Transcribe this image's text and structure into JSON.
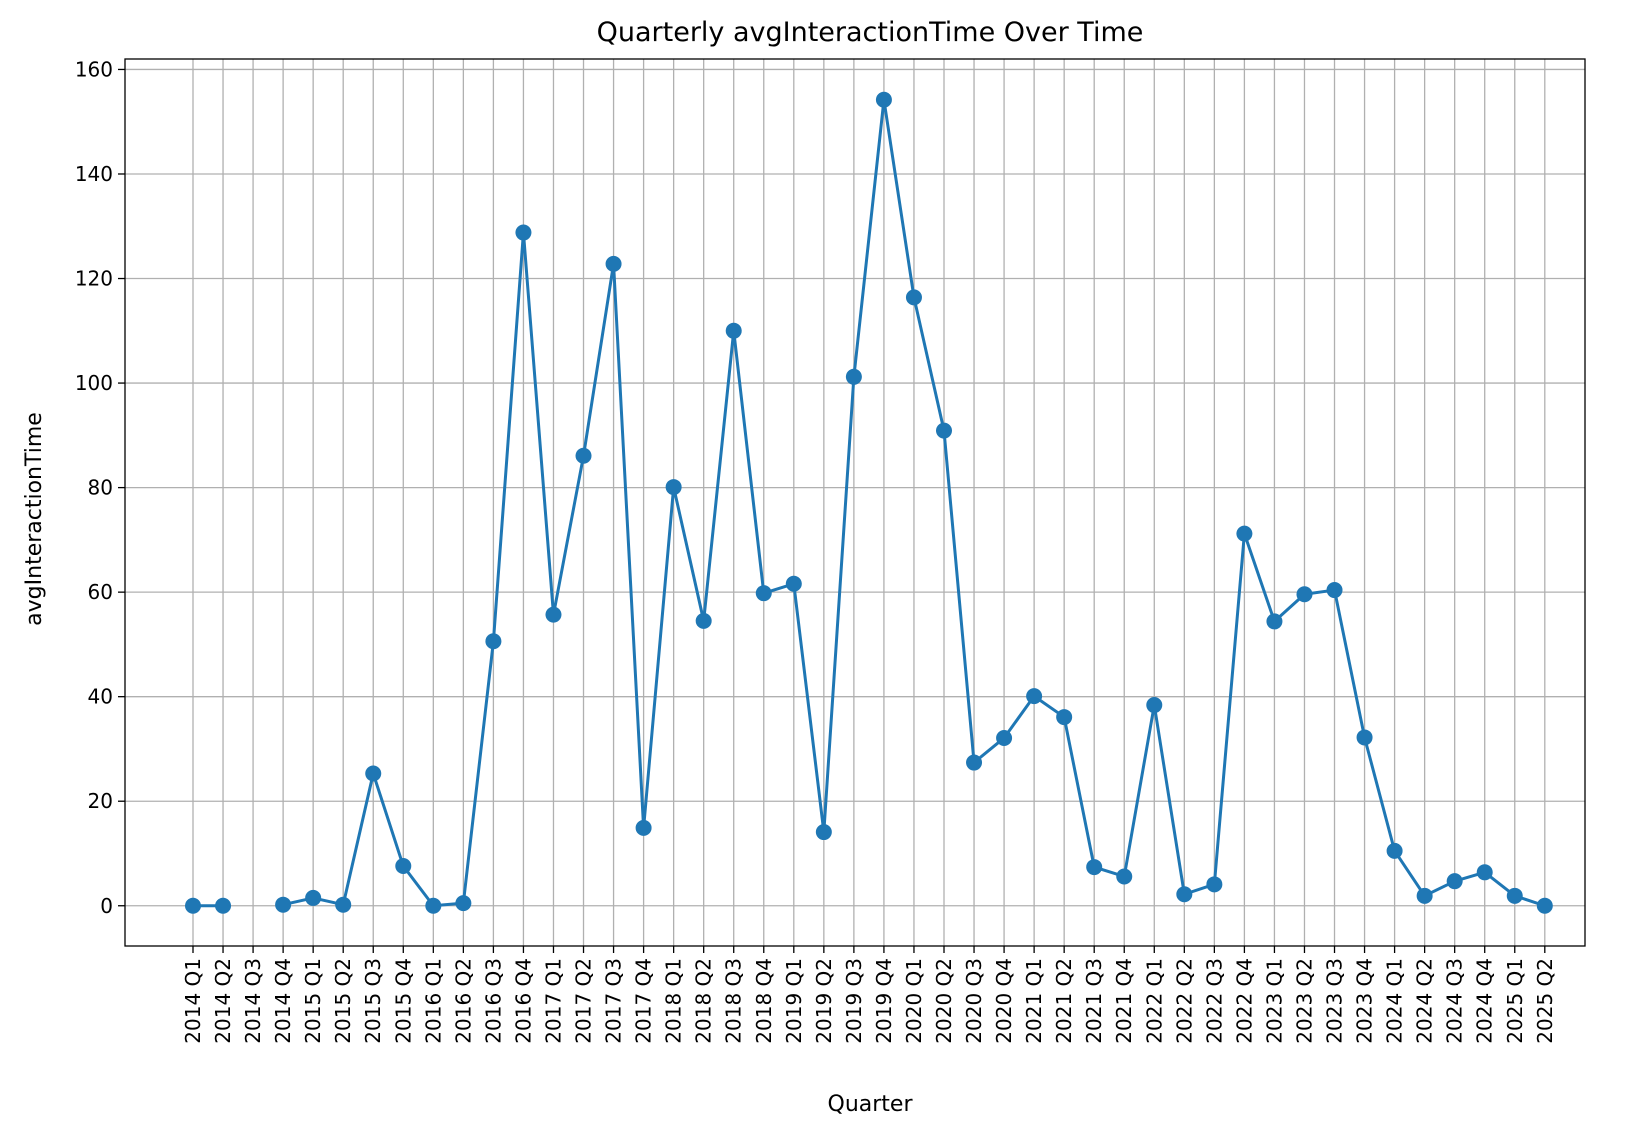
{
  "chart_data": {
    "type": "line",
    "title": "Quarterly avgInteractionTime Over Time",
    "xlabel": "Quarter",
    "ylabel": "avgInteractionTime",
    "ylim": [
      -7.7,
      162
    ],
    "yticks": [
      0,
      20,
      40,
      60,
      80,
      100,
      120,
      140,
      160
    ],
    "grid": true,
    "legend": "none",
    "colors": {
      "line": "#1f77b4",
      "grid": "#b0b0b0",
      "axis": "#000000"
    },
    "categories": [
      "2014 Q1",
      "2014 Q2",
      "2014 Q3",
      "2014 Q4",
      "2015 Q1",
      "2015 Q2",
      "2015 Q3",
      "2015 Q4",
      "2016 Q1",
      "2016 Q2",
      "2016 Q3",
      "2016 Q4",
      "2017 Q1",
      "2017 Q2",
      "2017 Q3",
      "2017 Q4",
      "2018 Q1",
      "2018 Q2",
      "2018 Q3",
      "2018 Q4",
      "2019 Q1",
      "2019 Q2",
      "2019 Q3",
      "2019 Q4",
      "2020 Q1",
      "2020 Q2",
      "2020 Q3",
      "2020 Q4",
      "2021 Q1",
      "2021 Q2",
      "2021 Q3",
      "2021 Q4",
      "2022 Q1",
      "2022 Q2",
      "2022 Q3",
      "2022 Q4",
      "2023 Q1",
      "2023 Q2",
      "2023 Q3",
      "2023 Q4",
      "2024 Q1",
      "2024 Q2",
      "2024 Q3",
      "2024 Q4",
      "2025 Q1",
      "2025 Q2"
    ],
    "series": [
      {
        "values": [
          0.0,
          0.0,
          null,
          0.2,
          1.5,
          0.2,
          25.3,
          7.6,
          0.0,
          0.5,
          50.6,
          128.8,
          55.7,
          86.1,
          122.8,
          14.9,
          80.1,
          54.5,
          110.0,
          59.8,
          61.6,
          14.1,
          101.2,
          154.2,
          116.4,
          90.9,
          27.4,
          32.1,
          40.1,
          36.1,
          7.4,
          5.6,
          38.4,
          2.2,
          4.1,
          71.2,
          54.4,
          59.6,
          60.4,
          32.2,
          10.5,
          1.9,
          4.7,
          6.4,
          1.9,
          0.0
        ]
      }
    ]
  }
}
